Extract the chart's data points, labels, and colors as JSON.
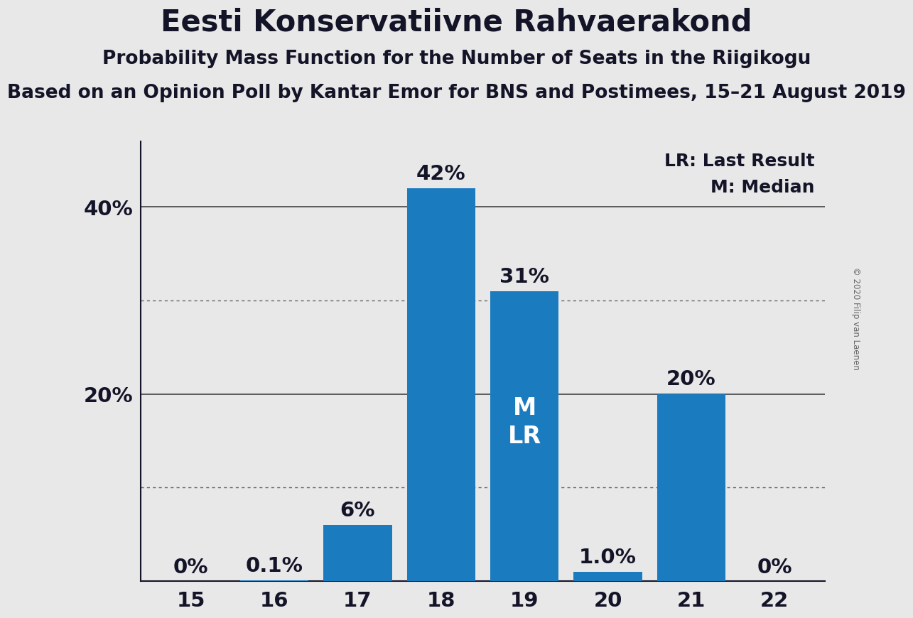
{
  "title": "Eesti Konservatiivne Rahvaerakond",
  "subtitle": "Probability Mass Function for the Number of Seats in the Riigikogu",
  "subsubtitle": "Based on an Opinion Poll by Kantar Emor for BNS and Postimees, 15–21 August 2019",
  "copyright": "© 2020 Filip van Laenen",
  "categories": [
    15,
    16,
    17,
    18,
    19,
    20,
    21,
    22
  ],
  "values": [
    0.0,
    0.001,
    0.06,
    0.42,
    0.31,
    0.01,
    0.2,
    0.0
  ],
  "bar_labels": [
    "0%",
    "0.1%",
    "6%",
    "42%",
    "31%",
    "1.0%",
    "20%",
    "0%"
  ],
  "bar_color": "#1a7bbf",
  "background_color": "#e8e8e8",
  "median_bar": 19,
  "lr_bar": 19,
  "legend_lr": "LR: Last Result",
  "legend_m": "M: Median",
  "solid_gridlines": [
    0.2,
    0.4
  ],
  "dotted_gridlines": [
    0.1,
    0.3
  ],
  "ylim": [
    0,
    0.47
  ],
  "title_fontsize": 30,
  "subtitle_fontsize": 19,
  "subsubtitle_fontsize": 19,
  "bar_label_fontsize": 21,
  "axis_tick_fontsize": 21,
  "legend_fontsize": 18,
  "inside_label_fontsize": 24
}
